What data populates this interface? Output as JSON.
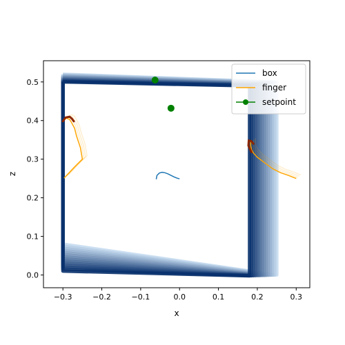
{
  "chart_data": {
    "type": "line",
    "xlabel": "x",
    "ylabel": "z",
    "xlim": [
      -0.35,
      0.335
    ],
    "ylim": [
      -0.033,
      0.555
    ],
    "xticks": [
      "-0.3",
      "-0.2",
      "-0.1",
      "0.0",
      "0.1",
      "0.2",
      "0.3"
    ],
    "yticks": [
      "0.0",
      "0.1",
      "0.2",
      "0.3",
      "0.4",
      "0.5"
    ],
    "legend_position": "top-right",
    "series": [
      {
        "name": "box",
        "color": "#1f77b4",
        "x": [
          -0.06,
          -0.058,
          -0.052,
          -0.045,
          -0.038,
          -0.03,
          -0.022,
          -0.014,
          -0.007,
          0.0
        ],
        "z": [
          0.248,
          0.258,
          0.264,
          0.266,
          0.265,
          0.262,
          0.258,
          0.254,
          0.251,
          0.249
        ]
      },
      {
        "name": "finger",
        "color": "#ffa500",
        "paths": [
          {
            "x": [
              -0.297,
              -0.27,
              -0.25,
              -0.255,
              -0.265,
              -0.27,
              -0.278,
              -0.283,
              -0.29,
              -0.293
            ],
            "z": [
              0.251,
              0.28,
              0.3,
              0.33,
              0.36,
              0.38,
              0.395,
              0.403,
              0.406,
              0.405
            ]
          },
          {
            "x": [
              0.3,
              0.28,
              0.26,
              0.24,
              0.22,
              0.2,
              0.19,
              0.185,
              0.183,
              0.183
            ],
            "z": [
              0.25,
              0.258,
              0.265,
              0.275,
              0.29,
              0.305,
              0.316,
              0.325,
              0.335,
              0.345
            ]
          }
        ]
      },
      {
        "name": "setpoint",
        "color": "#008000",
        "x": [
          -0.063,
          -0.022
        ],
        "z": [
          0.505,
          0.432
        ]
      }
    ],
    "box_frames": {
      "colormap": "Blues",
      "outlines": [
        {
          "x": [
            -0.3,
            0.18,
            0.18,
            -0.3,
            -0.3
          ],
          "z": [
            0.5,
            0.49,
            -0.002,
            0.01,
            0.5
          ]
        },
        {
          "x": [
            -0.3,
            0.2,
            0.2,
            -0.3,
            -0.3
          ],
          "z": [
            0.505,
            0.505,
            0.0,
            0.01,
            0.505
          ]
        },
        {
          "x": [
            -0.3,
            0.25,
            0.25,
            -0.3,
            -0.3
          ],
          "z": [
            0.52,
            0.5,
            0.0,
            0.08,
            0.52
          ]
        }
      ]
    },
    "fingertip_trail": {
      "color": "#8b2500",
      "paths": [
        {
          "x": [
            -0.3,
            -0.293,
            -0.283,
            -0.277,
            -0.272
          ],
          "z": [
            0.398,
            0.408,
            0.41,
            0.405,
            0.398
          ]
        },
        {
          "x": [
            0.185,
            0.177,
            0.178,
            0.184,
            0.19
          ],
          "z": [
            0.318,
            0.335,
            0.348,
            0.347,
            0.34
          ]
        }
      ]
    }
  }
}
